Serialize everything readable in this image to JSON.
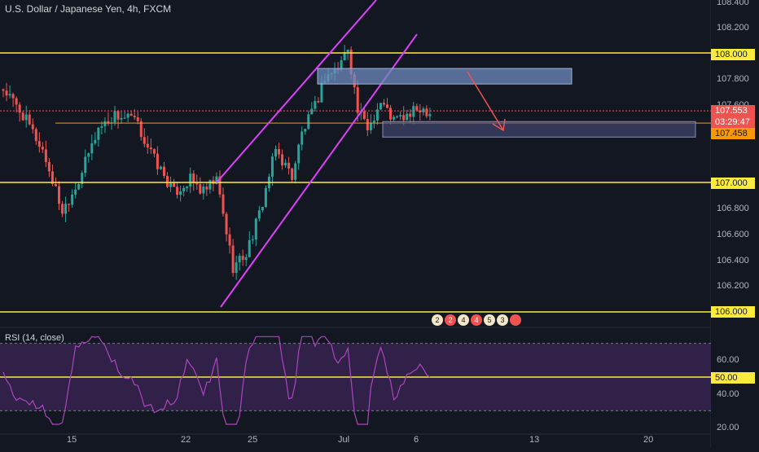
{
  "header": {
    "symbol_title": "U.S. Dollar / Japanese Yen, 4h, FXCM"
  },
  "rsi_panel": {
    "title": "RSI (14, close)",
    "y_ticks": [
      "60.00",
      "40.00",
      "20.00"
    ],
    "level_tag": "50.00"
  },
  "price_scale": {
    "ticks": [
      "108.400",
      "108.200",
      "107.800",
      "107.600",
      "106.800",
      "106.600",
      "106.400",
      "106.200"
    ],
    "level_tags": [
      "108.000",
      "107.000",
      "106.000"
    ],
    "last_price_tag": "107.553",
    "countdown_tag": "03:29:47",
    "zone_tag": "107.458"
  },
  "time_axis": {
    "labels": [
      "15",
      "22",
      "25",
      "Jul",
      "6",
      "13",
      "20"
    ]
  },
  "event_markers": [
    {
      "label": "2",
      "style": "light"
    },
    {
      "label": "2",
      "style": "red"
    },
    {
      "label": "4",
      "style": "light"
    },
    {
      "label": "4",
      "style": "red"
    },
    {
      "label": "5",
      "style": "light"
    },
    {
      "label": "3",
      "style": "light"
    },
    {
      "label": "",
      "style": "red"
    }
  ],
  "colors": {
    "background": "#131722",
    "bull": "#26a69a",
    "bear": "#ef5350",
    "level_line": "#ffeb3b",
    "orange_line": "#ff9800",
    "channel": "#e040fb",
    "supply_zone": "#6e8cbf",
    "demand_zone": "#4a4f7a",
    "rsi_band": "#3a2352",
    "rsi_line": "#ab47bc"
  },
  "chart_data": {
    "type": "candlestick",
    "title": "U.S. Dollar / Japanese Yen, 4h, FXCM",
    "xlabel": "",
    "ylabel": "",
    "ylim": [
      105.95,
      108.45
    ],
    "horizontal_levels": [
      108.0,
      107.0,
      106.0
    ],
    "orange_level": 107.458,
    "last_price": 107.553,
    "supply_zone": {
      "from": 107.76,
      "to": 107.88
    },
    "demand_zone": {
      "from": 107.35,
      "to": 107.47
    },
    "rsi": {
      "ylim": [
        18,
        78
      ],
      "overbought": 70,
      "oversold": 30,
      "mid": 50
    }
  }
}
